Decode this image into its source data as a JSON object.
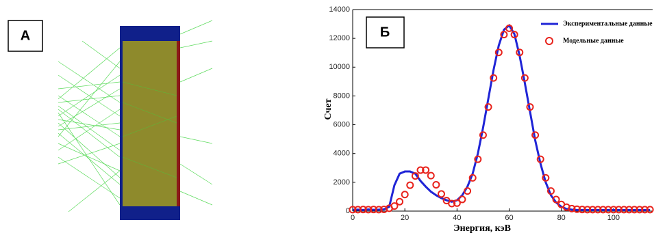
{
  "panel_labels": [
    "А",
    "Б"
  ],
  "chart_data": {
    "type": "line",
    "x_label": "Энергия, кэВ",
    "y_label": "Счет",
    "x": [
      0,
      2,
      4,
      6,
      8,
      10,
      12,
      14,
      16,
      18,
      20,
      22,
      24,
      26,
      28,
      30,
      32,
      34,
      36,
      38,
      40,
      42,
      44,
      46,
      48,
      50,
      52,
      54,
      56,
      58,
      60,
      62,
      64,
      66,
      68,
      70,
      72,
      74,
      76,
      78,
      80,
      82,
      84,
      86,
      88,
      90,
      92,
      94,
      96,
      98,
      100,
      102,
      104,
      106,
      108,
      110,
      112,
      114
    ],
    "series": [
      {
        "name": "Экспериментальные данные",
        "color": "#1f24d6",
        "mode": "line",
        "values": [
          90,
          100,
          80,
          110,
          90,
          100,
          120,
          300,
          1800,
          2600,
          2750,
          2750,
          2600,
          2100,
          1700,
          1350,
          1100,
          900,
          750,
          650,
          750,
          1100,
          1700,
          2600,
          4000,
          5800,
          7800,
          9800,
          11500,
          12600,
          12900,
          12300,
          10800,
          8900,
          6900,
          4900,
          3300,
          2000,
          1100,
          600,
          300,
          150,
          100,
          80,
          80,
          80,
          80,
          80,
          80,
          80,
          80,
          80,
          80,
          80,
          80,
          80,
          80,
          80
        ]
      },
      {
        "name": "Модельные данные",
        "color": "#e8231c",
        "mode": "markers",
        "values": [
          100,
          100,
          110,
          100,
          110,
          100,
          120,
          195,
          350,
          655,
          1150,
          1800,
          2440,
          2845,
          2850,
          2460,
          1830,
          1190,
          730,
          520,
          555,
          810,
          1394,
          2308,
          3603,
          5280,
          7233,
          9248,
          11025,
          12260,
          12700,
          12260,
          11025,
          9248,
          7233,
          5280,
          3603,
          2308,
          1394,
          807,
          460,
          270,
          175,
          130,
          110,
          100,
          100,
          100,
          100,
          100,
          100,
          100,
          100,
          100,
          100,
          100,
          100,
          100
        ]
      }
    ],
    "xlim": [
      0,
      115
    ],
    "ylim": [
      0,
      14000
    ],
    "xticks": [
      0,
      20,
      40,
      60,
      80,
      100
    ],
    "yticks": [
      0,
      2000,
      4000,
      6000,
      8000,
      10000,
      12000,
      14000
    ]
  }
}
